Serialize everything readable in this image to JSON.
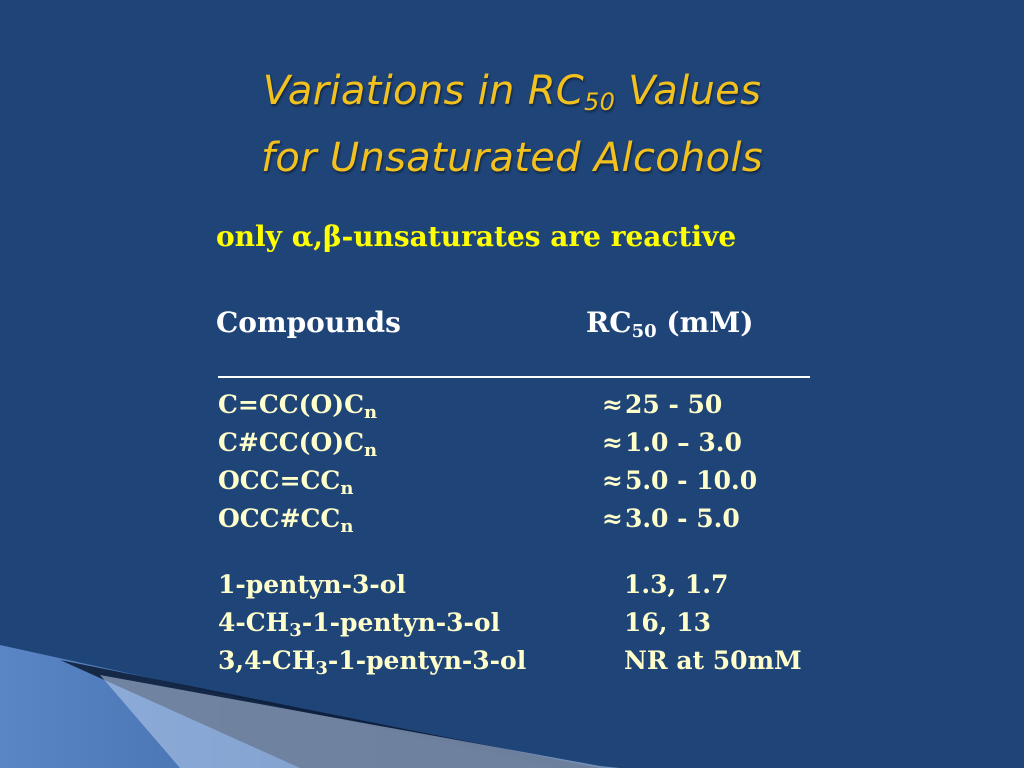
{
  "slide": {
    "title_line1_pre": "Variations in RC",
    "title_line1_sub": "50",
    "title_line1_post": " Values",
    "title_line2": "for Unsaturated Alcohols",
    "subtitle": "only α,β-unsaturates are reactive",
    "headers": {
      "compounds": "Compounds",
      "rc_pre": "RC",
      "rc_sub": "50",
      "rc_post": " (mM)"
    },
    "approx_symbol": "≈",
    "group1": [
      {
        "compound": "C=CC(O)C",
        "sub": "n",
        "value": "25 - 50"
      },
      {
        "compound": "C#CC(O)C",
        "sub": "n",
        "value": "1.0 – 3.0"
      },
      {
        "compound": "OCC=CC",
        "sub": "n",
        "value": "5.0 - 10.0"
      },
      {
        "compound": "OCC#CC",
        "sub": "n",
        "value": "3.0 - 5.0"
      }
    ],
    "group2": [
      {
        "pre": "1-pentyn-3-ol",
        "sub": "",
        "post": "",
        "value": "1.3, 1.7"
      },
      {
        "pre": "4-CH",
        "sub": "3",
        "post": "-1-pentyn-3-ol",
        "value": "16, 13"
      },
      {
        "pre": "3,4-CH",
        "sub": "3",
        "post": "-1-pentyn-3-ol",
        "value": "NR at 50mM"
      }
    ]
  },
  "colors": {
    "background": "#1f4478",
    "title": "#f2c11e",
    "subtitle": "#ffff00",
    "table_text": "#ffffcc"
  }
}
